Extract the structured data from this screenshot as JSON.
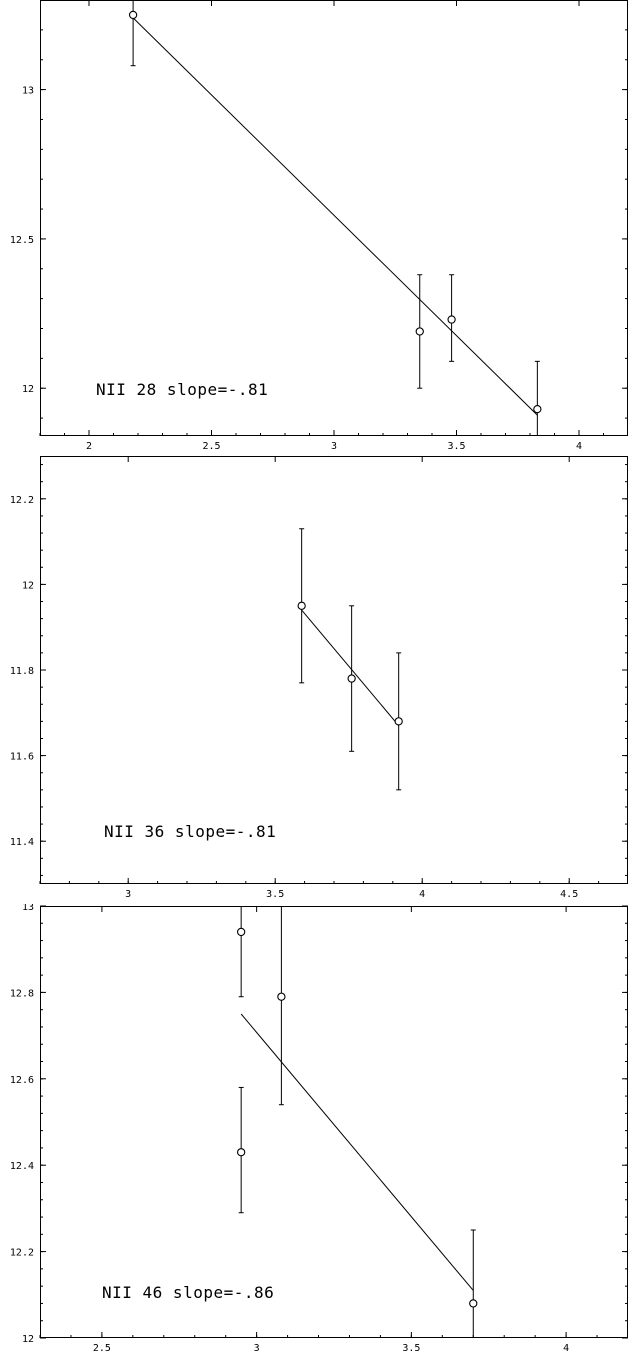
{
  "chart_data": [
    {
      "type": "scatter",
      "annotation": "NII 28 slope=-.81",
      "xlim": [
        1.8,
        4.2
      ],
      "ylim": [
        11.84,
        13.3
      ],
      "xticks": [
        2,
        2.5,
        3,
        3.5,
        4
      ],
      "xtick_labels": [
        "2",
        "2.5",
        "3",
        "3.5",
        "4"
      ],
      "yticks": [
        12,
        12.5,
        13
      ],
      "ytick_labels": [
        "12",
        "12.5",
        "13"
      ],
      "series": [
        {
          "points": [
            {
              "x": 2.18,
              "y": 13.25,
              "err_low": 13.08,
              "err_high": 13.3
            },
            {
              "x": 3.35,
              "y": 12.19,
              "err_low": 12.0,
              "err_high": 12.38
            },
            {
              "x": 3.48,
              "y": 12.23,
              "err_low": 12.09,
              "err_high": 12.38
            },
            {
              "x": 3.83,
              "y": 11.93,
              "err_low": 11.84,
              "err_high": 12.09
            }
          ]
        }
      ],
      "fit_line": {
        "x": [
          2.18,
          3.83
        ],
        "y": [
          13.24,
          11.91
        ]
      }
    },
    {
      "type": "scatter",
      "annotation": "NII 36 slope=-.81",
      "xlim": [
        2.7,
        4.7
      ],
      "ylim": [
        11.3,
        12.3
      ],
      "xticks": [
        3,
        3.5,
        4,
        4.5
      ],
      "xtick_labels": [
        "3",
        "3.5",
        "4",
        "4.5"
      ],
      "yticks": [
        11.4,
        11.6,
        11.8,
        12,
        12.2
      ],
      "ytick_labels": [
        "11.4",
        "11.6",
        "11.8",
        "12",
        "12.2"
      ],
      "series": [
        {
          "points": [
            {
              "x": 3.59,
              "y": 11.95,
              "err_low": 11.77,
              "err_high": 12.13
            },
            {
              "x": 3.76,
              "y": 11.78,
              "err_low": 11.61,
              "err_high": 11.95
            },
            {
              "x": 3.92,
              "y": 11.68,
              "err_low": 11.52,
              "err_high": 11.84
            }
          ]
        }
      ],
      "fit_line": {
        "x": [
          3.59,
          3.92
        ],
        "y": [
          11.94,
          11.67
        ]
      }
    },
    {
      "type": "scatter",
      "annotation": "NII 46 slope=-.86",
      "xlim": [
        2.3,
        4.2
      ],
      "ylim": [
        12.0,
        13.0
      ],
      "xticks": [
        2.5,
        3,
        3.5,
        4
      ],
      "xtick_labels": [
        "2.5",
        "3",
        "3.5",
        "4"
      ],
      "yticks": [
        12,
        12.2,
        12.4,
        12.6,
        12.8,
        13
      ],
      "ytick_labels": [
        "12",
        "12.2",
        "12.4",
        "12.6",
        "12.8",
        "13"
      ],
      "series": [
        {
          "points": [
            {
              "x": 2.95,
              "y": 12.94,
              "err_low": 12.79,
              "err_high": 13.0
            },
            {
              "x": 2.95,
              "y": 12.43,
              "err_low": 12.29,
              "err_high": 12.58
            },
            {
              "x": 3.08,
              "y": 12.79,
              "err_low": 12.54,
              "err_high": 13.0
            },
            {
              "x": 3.7,
              "y": 12.08,
              "err_low": 12.0,
              "err_high": 12.25
            }
          ]
        }
      ],
      "fit_line": {
        "x": [
          2.95,
          3.7
        ],
        "y": [
          12.75,
          12.11
        ]
      }
    }
  ]
}
